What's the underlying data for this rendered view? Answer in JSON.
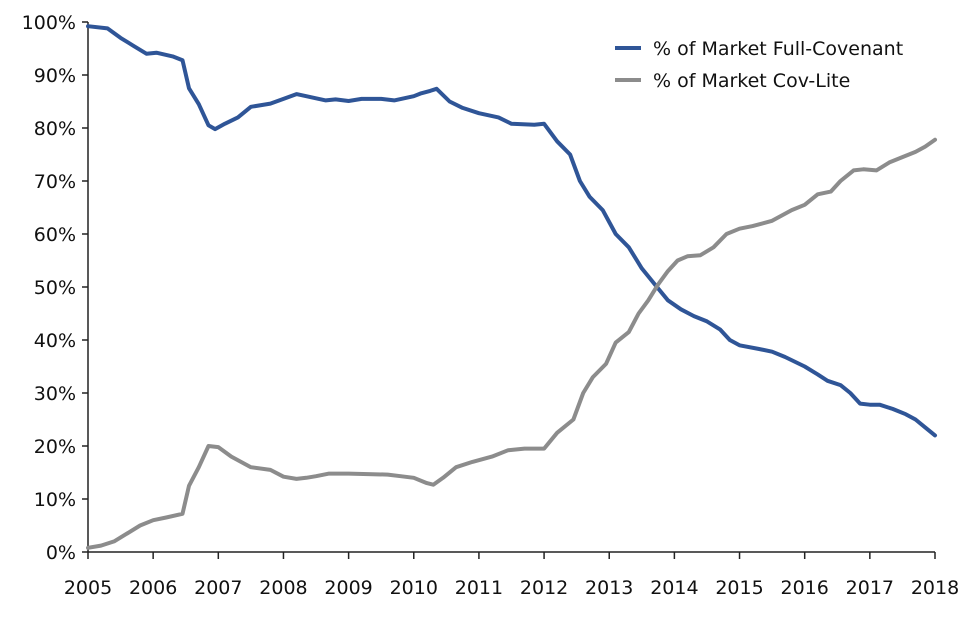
{
  "chart_data": {
    "type": "line",
    "title": "",
    "xlabel": "",
    "ylabel": "",
    "xlim": [
      2005,
      2018
    ],
    "ylim": [
      0,
      100
    ],
    "x_ticks": [
      "2005",
      "2006",
      "2007",
      "2008",
      "2009",
      "2010",
      "2011",
      "2012",
      "2013",
      "2014",
      "2015",
      "2016",
      "2017",
      "2018"
    ],
    "y_ticks": [
      "0%",
      "10%",
      "20%",
      "30%",
      "40%",
      "50%",
      "60%",
      "70%",
      "80%",
      "90%",
      "100%"
    ],
    "grid": false,
    "legend_position": "top-right",
    "series": [
      {
        "name": "% of Market Full-Covenant",
        "color": "#2f5597",
        "points": [
          [
            2005.0,
            99.2
          ],
          [
            2005.3,
            98.8
          ],
          [
            2005.5,
            97.0
          ],
          [
            2005.7,
            95.5
          ],
          [
            2005.9,
            94.0
          ],
          [
            2006.05,
            94.2
          ],
          [
            2006.3,
            93.5
          ],
          [
            2006.45,
            92.8
          ],
          [
            2006.55,
            87.5
          ],
          [
            2006.7,
            84.5
          ],
          [
            2006.85,
            80.5
          ],
          [
            2006.95,
            79.8
          ],
          [
            2007.1,
            80.8
          ],
          [
            2007.3,
            82.0
          ],
          [
            2007.5,
            84.0
          ],
          [
            2007.8,
            84.6
          ],
          [
            2008.0,
            85.5
          ],
          [
            2008.2,
            86.4
          ],
          [
            2008.35,
            86.0
          ],
          [
            2008.5,
            85.6
          ],
          [
            2008.65,
            85.2
          ],
          [
            2008.8,
            85.4
          ],
          [
            2009.0,
            85.1
          ],
          [
            2009.2,
            85.5
          ],
          [
            2009.5,
            85.5
          ],
          [
            2009.7,
            85.2
          ],
          [
            2010.0,
            86.0
          ],
          [
            2010.1,
            86.5
          ],
          [
            2010.25,
            87.0
          ],
          [
            2010.35,
            87.4
          ],
          [
            2010.55,
            85.0
          ],
          [
            2010.75,
            83.8
          ],
          [
            2011.0,
            82.8
          ],
          [
            2011.3,
            82.0
          ],
          [
            2011.5,
            80.8
          ],
          [
            2011.85,
            80.6
          ],
          [
            2012.0,
            80.8
          ],
          [
            2012.2,
            77.5
          ],
          [
            2012.4,
            75.0
          ],
          [
            2012.55,
            70.0
          ],
          [
            2012.7,
            67.0
          ],
          [
            2012.9,
            64.5
          ],
          [
            2013.1,
            60.0
          ],
          [
            2013.3,
            57.5
          ],
          [
            2013.5,
            53.5
          ],
          [
            2013.7,
            50.5
          ],
          [
            2013.9,
            47.5
          ],
          [
            2014.1,
            45.8
          ],
          [
            2014.3,
            44.5
          ],
          [
            2014.5,
            43.5
          ],
          [
            2014.7,
            42.0
          ],
          [
            2014.85,
            40.0
          ],
          [
            2015.0,
            39.0
          ],
          [
            2015.3,
            38.3
          ],
          [
            2015.5,
            37.8
          ],
          [
            2015.7,
            36.8
          ],
          [
            2016.0,
            35.0
          ],
          [
            2016.2,
            33.5
          ],
          [
            2016.35,
            32.3
          ],
          [
            2016.55,
            31.5
          ],
          [
            2016.7,
            30.0
          ],
          [
            2016.85,
            28.0
          ],
          [
            2017.0,
            27.8
          ],
          [
            2017.15,
            27.8
          ],
          [
            2017.35,
            27.0
          ],
          [
            2017.55,
            26.0
          ],
          [
            2017.7,
            25.0
          ],
          [
            2017.85,
            23.5
          ],
          [
            2018.0,
            22.0
          ]
        ]
      },
      {
        "name": "% of Market Cov-Lite",
        "color": "#8c8c8c",
        "points": [
          [
            2005.0,
            0.8
          ],
          [
            2005.2,
            1.2
          ],
          [
            2005.4,
            2.0
          ],
          [
            2005.6,
            3.5
          ],
          [
            2005.8,
            5.0
          ],
          [
            2006.0,
            6.0
          ],
          [
            2006.2,
            6.5
          ],
          [
            2006.45,
            7.2
          ],
          [
            2006.55,
            12.5
          ],
          [
            2006.7,
            16.0
          ],
          [
            2006.85,
            20.0
          ],
          [
            2007.0,
            19.8
          ],
          [
            2007.2,
            18.0
          ],
          [
            2007.5,
            16.0
          ],
          [
            2007.8,
            15.5
          ],
          [
            2008.0,
            14.2
          ],
          [
            2008.2,
            13.8
          ],
          [
            2008.35,
            14.0
          ],
          [
            2008.5,
            14.3
          ],
          [
            2008.7,
            14.8
          ],
          [
            2009.0,
            14.8
          ],
          [
            2009.3,
            14.7
          ],
          [
            2009.6,
            14.6
          ],
          [
            2009.8,
            14.3
          ],
          [
            2010.0,
            14.0
          ],
          [
            2010.2,
            13.0
          ],
          [
            2010.3,
            12.7
          ],
          [
            2010.45,
            14.0
          ],
          [
            2010.65,
            16.0
          ],
          [
            2010.9,
            17.0
          ],
          [
            2011.2,
            18.0
          ],
          [
            2011.45,
            19.2
          ],
          [
            2011.7,
            19.5
          ],
          [
            2011.9,
            19.5
          ],
          [
            2012.0,
            19.5
          ],
          [
            2012.2,
            22.5
          ],
          [
            2012.45,
            25.0
          ],
          [
            2012.6,
            30.0
          ],
          [
            2012.75,
            33.0
          ],
          [
            2012.95,
            35.5
          ],
          [
            2013.1,
            39.5
          ],
          [
            2013.3,
            41.5
          ],
          [
            2013.45,
            45.0
          ],
          [
            2013.6,
            47.5
          ],
          [
            2013.75,
            50.5
          ],
          [
            2013.9,
            53.0
          ],
          [
            2014.05,
            55.0
          ],
          [
            2014.2,
            55.8
          ],
          [
            2014.4,
            56.0
          ],
          [
            2014.6,
            57.5
          ],
          [
            2014.8,
            60.0
          ],
          [
            2015.0,
            61.0
          ],
          [
            2015.2,
            61.5
          ],
          [
            2015.5,
            62.5
          ],
          [
            2015.8,
            64.5
          ],
          [
            2016.0,
            65.5
          ],
          [
            2016.2,
            67.5
          ],
          [
            2016.4,
            68.0
          ],
          [
            2016.55,
            70.0
          ],
          [
            2016.75,
            72.0
          ],
          [
            2016.9,
            72.2
          ],
          [
            2017.1,
            72.0
          ],
          [
            2017.3,
            73.5
          ],
          [
            2017.5,
            74.5
          ],
          [
            2017.7,
            75.5
          ],
          [
            2017.85,
            76.5
          ],
          [
            2018.0,
            77.8
          ]
        ]
      }
    ]
  }
}
